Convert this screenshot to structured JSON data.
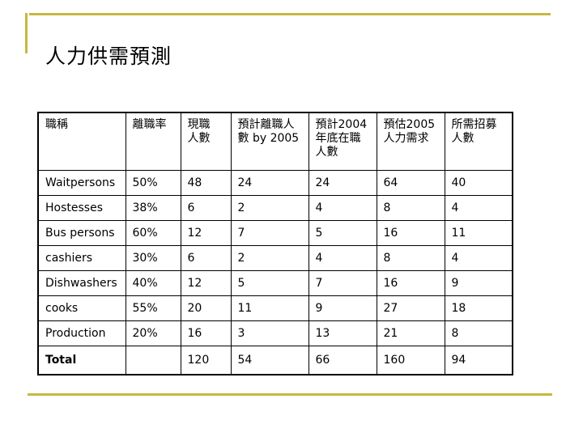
{
  "slide": {
    "title": "人力供需預測"
  },
  "table": {
    "headers": [
      "職稱",
      "離職率",
      "現職\n人數",
      "預計離職人\n數 by 2005",
      "預計2004\n年底在職\n人數",
      "預估2005\n人力需求",
      "所需招募\n人數"
    ],
    "rows": [
      [
        "Waitpersons",
        "50%",
        "48",
        "24",
        "24",
        "64",
        "40"
      ],
      [
        "Hostesses",
        "38%",
        "6",
        "2",
        "4",
        "8",
        "4"
      ],
      [
        "Bus persons",
        "60%",
        "12",
        "7",
        "5",
        "16",
        "11"
      ],
      [
        "cashiers",
        "30%",
        "6",
        "2",
        "4",
        "8",
        "4"
      ],
      [
        "Dishwashers",
        "40%",
        "12",
        "5",
        "7",
        "16",
        "9"
      ],
      [
        "cooks",
        "55%",
        "20",
        "11",
        "9",
        "27",
        "18"
      ],
      [
        "Production",
        "20%",
        "16",
        "3",
        "13",
        "21",
        "8"
      ]
    ],
    "total": [
      "Total",
      "",
      "120",
      "54",
      "66",
      "160",
      "94"
    ]
  },
  "colors": {
    "accent": "#c8b840",
    "text": "#000000",
    "background": "#ffffff"
  }
}
